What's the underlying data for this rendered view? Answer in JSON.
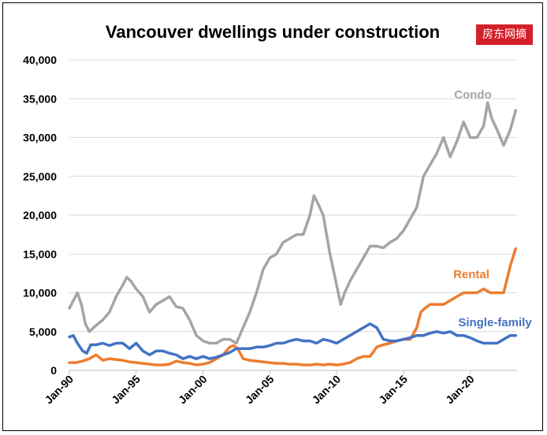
{
  "watermark": {
    "text": "房东网摘"
  },
  "chart_data": {
    "type": "line",
    "title": "Vancouver dwellings under construction",
    "xlabel": "",
    "ylabel": "",
    "xlim": [
      1990,
      2023.5
    ],
    "ylim": [
      0,
      40000
    ],
    "yticks": [
      0,
      5000,
      10000,
      15000,
      20000,
      25000,
      30000,
      35000,
      40000
    ],
    "ytick_labels": [
      "0",
      "5,000",
      "10,000",
      "15,000",
      "20,000",
      "25,000",
      "30,000",
      "35,000",
      "40,000"
    ],
    "xticks": [
      1990,
      1995,
      2000,
      2005,
      2010,
      2015,
      2020
    ],
    "xtick_labels": [
      "Jan-90",
      "Jan-95",
      "Jan-00",
      "Jan-05",
      "Jan-10",
      "Jan-15",
      "Jan-20"
    ],
    "grid": true,
    "legend": "none (series labelled directly on chart)",
    "series": [
      {
        "name": "Condo",
        "color": "#a5a5a5",
        "points": [
          [
            1990.0,
            8000
          ],
          [
            1990.3,
            9000
          ],
          [
            1990.6,
            10000
          ],
          [
            1990.9,
            8500
          ],
          [
            1991.2,
            6000
          ],
          [
            1991.5,
            5000
          ],
          [
            1992.0,
            5800
          ],
          [
            1992.5,
            6500
          ],
          [
            1993.0,
            7500
          ],
          [
            1993.5,
            9500
          ],
          [
            1994.0,
            11000
          ],
          [
            1994.3,
            12000
          ],
          [
            1994.6,
            11500
          ],
          [
            1995.0,
            10500
          ],
          [
            1995.5,
            9500
          ],
          [
            1996.0,
            7500
          ],
          [
            1996.5,
            8500
          ],
          [
            1997.0,
            9000
          ],
          [
            1997.5,
            9500
          ],
          [
            1998.0,
            8200
          ],
          [
            1998.5,
            8000
          ],
          [
            1999.0,
            6500
          ],
          [
            1999.5,
            4500
          ],
          [
            2000.0,
            3800
          ],
          [
            2000.5,
            3500
          ],
          [
            2001.0,
            3500
          ],
          [
            2001.5,
            4000
          ],
          [
            2002.0,
            4000
          ],
          [
            2002.5,
            3500
          ],
          [
            2003.0,
            5500
          ],
          [
            2003.5,
            7500
          ],
          [
            2004.0,
            10000
          ],
          [
            2004.5,
            13000
          ],
          [
            2005.0,
            14500
          ],
          [
            2005.5,
            15000
          ],
          [
            2006.0,
            16500
          ],
          [
            2006.5,
            17000
          ],
          [
            2007.0,
            17500
          ],
          [
            2007.5,
            17500
          ],
          [
            2008.0,
            20000
          ],
          [
            2008.3,
            22500
          ],
          [
            2008.6,
            21500
          ],
          [
            2009.0,
            20000
          ],
          [
            2009.5,
            15000
          ],
          [
            2010.0,
            11000
          ],
          [
            2010.3,
            8500
          ],
          [
            2010.6,
            10000
          ],
          [
            2011.0,
            11500
          ],
          [
            2011.5,
            13000
          ],
          [
            2012.0,
            14500
          ],
          [
            2012.5,
            16000
          ],
          [
            2013.0,
            16000
          ],
          [
            2013.5,
            15800
          ],
          [
            2014.0,
            16500
          ],
          [
            2014.5,
            17000
          ],
          [
            2015.0,
            18000
          ],
          [
            2015.5,
            19500
          ],
          [
            2016.0,
            21000
          ],
          [
            2016.5,
            25000
          ],
          [
            2017.0,
            26500
          ],
          [
            2017.5,
            28000
          ],
          [
            2018.0,
            30000
          ],
          [
            2018.5,
            27500
          ],
          [
            2019.0,
            29500
          ],
          [
            2019.5,
            32000
          ],
          [
            2020.0,
            30000
          ],
          [
            2020.5,
            30000
          ],
          [
            2021.0,
            31500
          ],
          [
            2021.3,
            34500
          ],
          [
            2021.6,
            32500
          ],
          [
            2022.0,
            31000
          ],
          [
            2022.5,
            29000
          ],
          [
            2023.0,
            31000
          ],
          [
            2023.4,
            33500
          ]
        ]
      },
      {
        "name": "Rental",
        "color": "#ed7d31",
        "points": [
          [
            1990.0,
            1000
          ],
          [
            1990.5,
            1000
          ],
          [
            1991.0,
            1200
          ],
          [
            1991.5,
            1500
          ],
          [
            1992.0,
            2000
          ],
          [
            1992.5,
            1300
          ],
          [
            1993.0,
            1500
          ],
          [
            1993.5,
            1400
          ],
          [
            1994.0,
            1300
          ],
          [
            1994.5,
            1100
          ],
          [
            1995.0,
            1000
          ],
          [
            1995.5,
            900
          ],
          [
            1996.0,
            800
          ],
          [
            1996.5,
            700
          ],
          [
            1997.0,
            700
          ],
          [
            1997.5,
            800
          ],
          [
            1998.0,
            1200
          ],
          [
            1998.5,
            1000
          ],
          [
            1999.0,
            900
          ],
          [
            1999.5,
            700
          ],
          [
            2000.0,
            800
          ],
          [
            2000.5,
            1000
          ],
          [
            2001.0,
            1500
          ],
          [
            2001.5,
            2000
          ],
          [
            2002.0,
            3000
          ],
          [
            2002.3,
            3200
          ],
          [
            2002.6,
            2800
          ],
          [
            2003.0,
            1500
          ],
          [
            2003.5,
            1300
          ],
          [
            2004.0,
            1200
          ],
          [
            2004.5,
            1100
          ],
          [
            2005.0,
            1000
          ],
          [
            2005.5,
            900
          ],
          [
            2006.0,
            900
          ],
          [
            2006.5,
            800
          ],
          [
            2007.0,
            800
          ],
          [
            2007.5,
            700
          ],
          [
            2008.0,
            700
          ],
          [
            2008.5,
            800
          ],
          [
            2009.0,
            700
          ],
          [
            2009.5,
            800
          ],
          [
            2010.0,
            700
          ],
          [
            2010.5,
            800
          ],
          [
            2011.0,
            1000
          ],
          [
            2011.5,
            1500
          ],
          [
            2012.0,
            1800
          ],
          [
            2012.5,
            1800
          ],
          [
            2013.0,
            3000
          ],
          [
            2013.5,
            3300
          ],
          [
            2014.0,
            3500
          ],
          [
            2014.5,
            3800
          ],
          [
            2015.0,
            4000
          ],
          [
            2015.5,
            4000
          ],
          [
            2016.0,
            5500
          ],
          [
            2016.3,
            7500
          ],
          [
            2016.6,
            8000
          ],
          [
            2017.0,
            8500
          ],
          [
            2017.5,
            8500
          ],
          [
            2018.0,
            8500
          ],
          [
            2018.5,
            9000
          ],
          [
            2019.0,
            9500
          ],
          [
            2019.5,
            10000
          ],
          [
            2020.0,
            10000
          ],
          [
            2020.5,
            10000
          ],
          [
            2021.0,
            10500
          ],
          [
            2021.5,
            10000
          ],
          [
            2022.0,
            10000
          ],
          [
            2022.5,
            10000
          ],
          [
            2023.0,
            13500
          ],
          [
            2023.4,
            15700
          ]
        ]
      },
      {
        "name": "Single-family",
        "color": "#4472c4",
        "points": [
          [
            1990.0,
            4300
          ],
          [
            1990.3,
            4500
          ],
          [
            1990.6,
            3500
          ],
          [
            1991.0,
            2500
          ],
          [
            1991.3,
            2200
          ],
          [
            1991.6,
            3300
          ],
          [
            1992.0,
            3300
          ],
          [
            1992.5,
            3500
          ],
          [
            1993.0,
            3200
          ],
          [
            1993.5,
            3500
          ],
          [
            1994.0,
            3500
          ],
          [
            1994.5,
            2800
          ],
          [
            1995.0,
            3500
          ],
          [
            1995.5,
            2500
          ],
          [
            1996.0,
            2000
          ],
          [
            1996.5,
            2500
          ],
          [
            1997.0,
            2500
          ],
          [
            1997.5,
            2200
          ],
          [
            1998.0,
            2000
          ],
          [
            1998.5,
            1500
          ],
          [
            1999.0,
            1800
          ],
          [
            1999.5,
            1500
          ],
          [
            2000.0,
            1800
          ],
          [
            2000.5,
            1500
          ],
          [
            2001.0,
            1700
          ],
          [
            2001.5,
            2000
          ],
          [
            2002.0,
            2300
          ],
          [
            2002.5,
            2800
          ],
          [
            2003.0,
            2800
          ],
          [
            2003.5,
            2800
          ],
          [
            2004.0,
            3000
          ],
          [
            2004.5,
            3000
          ],
          [
            2005.0,
            3200
          ],
          [
            2005.5,
            3500
          ],
          [
            2006.0,
            3500
          ],
          [
            2006.5,
            3800
          ],
          [
            2007.0,
            4000
          ],
          [
            2007.5,
            3800
          ],
          [
            2008.0,
            3800
          ],
          [
            2008.5,
            3500
          ],
          [
            2009.0,
            4000
          ],
          [
            2009.5,
            3800
          ],
          [
            2010.0,
            3500
          ],
          [
            2010.5,
            4000
          ],
          [
            2011.0,
            4500
          ],
          [
            2011.5,
            5000
          ],
          [
            2012.0,
            5500
          ],
          [
            2012.5,
            6000
          ],
          [
            2013.0,
            5500
          ],
          [
            2013.5,
            4000
          ],
          [
            2014.0,
            3800
          ],
          [
            2014.5,
            3800
          ],
          [
            2015.0,
            4000
          ],
          [
            2015.5,
            4200
          ],
          [
            2016.0,
            4500
          ],
          [
            2016.5,
            4500
          ],
          [
            2017.0,
            4800
          ],
          [
            2017.5,
            5000
          ],
          [
            2018.0,
            4800
          ],
          [
            2018.5,
            5000
          ],
          [
            2019.0,
            4500
          ],
          [
            2019.5,
            4500
          ],
          [
            2020.0,
            4200
          ],
          [
            2020.5,
            3800
          ],
          [
            2021.0,
            3500
          ],
          [
            2021.5,
            3500
          ],
          [
            2022.0,
            3500
          ],
          [
            2022.5,
            4000
          ],
          [
            2023.0,
            4500
          ],
          [
            2023.4,
            4500
          ]
        ]
      }
    ]
  }
}
